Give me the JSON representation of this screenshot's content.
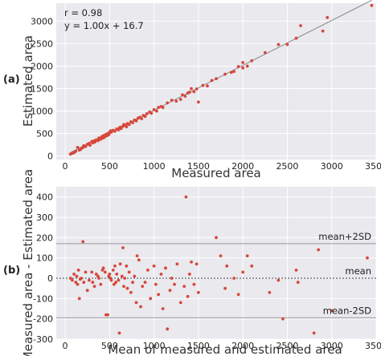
{
  "panels": [
    {
      "label": "(a)",
      "annotation": {
        "r": "r = 0.98",
        "equation": "y = 1.00x + 16.7"
      },
      "xlabel": "Measured area",
      "ylabel": "Estimated area"
    },
    {
      "label": "(b)",
      "xlabel": "Mean of measured and estimated area",
      "ylabel": "Measured area - Estimated area",
      "line_labels": {
        "upper": "mean+2SD",
        "mean": "mean",
        "lower": "mean-2SD"
      }
    }
  ],
  "colors": {
    "points": "#d6473b",
    "plot_background": "#e9e9ee",
    "grid": "#ffffff"
  },
  "chart_data": [
    {
      "type": "scatter",
      "xlim": [
        -100,
        3500
      ],
      "ylim": [
        -80,
        3400
      ],
      "xticks": [
        0,
        500,
        1000,
        1500,
        2000,
        2500,
        3000,
        3500
      ],
      "yticks": [
        0,
        500,
        1000,
        1500,
        2000,
        2500,
        3000
      ],
      "grid": true,
      "regression": {
        "slope": 1.0,
        "intercept": 16.7,
        "r": 0.98
      },
      "points": [
        [
          60,
          40
        ],
        [
          80,
          60
        ],
        [
          95,
          70
        ],
        [
          110,
          90
        ],
        [
          120,
          110
        ],
        [
          140,
          190
        ],
        [
          160,
          130
        ],
        [
          175,
          150
        ],
        [
          185,
          170
        ],
        [
          200,
          190
        ],
        [
          210,
          230
        ],
        [
          230,
          210
        ],
        [
          250,
          260
        ],
        [
          270,
          280
        ],
        [
          280,
          240
        ],
        [
          300,
          320
        ],
        [
          310,
          290
        ],
        [
          320,
          330
        ],
        [
          335,
          310
        ],
        [
          340,
          350
        ],
        [
          360,
          360
        ],
        [
          370,
          340
        ],
        [
          380,
          400
        ],
        [
          390,
          380
        ],
        [
          400,
          370
        ],
        [
          410,
          420
        ],
        [
          420,
          440
        ],
        [
          430,
          400
        ],
        [
          440,
          460
        ],
        [
          450,
          430
        ],
        [
          460,
          480
        ],
        [
          470,
          450
        ],
        [
          480,
          500
        ],
        [
          490,
          470
        ],
        [
          500,
          520
        ],
        [
          510,
          560
        ],
        [
          520,
          530
        ],
        [
          540,
          570
        ],
        [
          560,
          550
        ],
        [
          580,
          600
        ],
        [
          600,
          580
        ],
        [
          610,
          620
        ],
        [
          620,
          640
        ],
        [
          630,
          610
        ],
        [
          650,
          660
        ],
        [
          660,
          700
        ],
        [
          680,
          680
        ],
        [
          690,
          650
        ],
        [
          700,
          720
        ],
        [
          720,
          700
        ],
        [
          740,
          760
        ],
        [
          760,
          740
        ],
        [
          780,
          800
        ],
        [
          800,
          780
        ],
        [
          820,
          840
        ],
        [
          840,
          860
        ],
        [
          860,
          830
        ],
        [
          880,
          900
        ],
        [
          900,
          880
        ],
        [
          920,
          940
        ],
        [
          950,
          980
        ],
        [
          970,
          950
        ],
        [
          1000,
          1030
        ],
        [
          1030,
          1000
        ],
        [
          1050,
          1080
        ],
        [
          1080,
          1100
        ],
        [
          1100,
          1080
        ],
        [
          1150,
          1180
        ],
        [
          1200,
          1240
        ],
        [
          1250,
          1220
        ],
        [
          1300,
          1260
        ],
        [
          1320,
          1360
        ],
        [
          1350,
          1330
        ],
        [
          1380,
          1400
        ],
        [
          1400,
          1420
        ],
        [
          1420,
          1500
        ],
        [
          1450,
          1430
        ],
        [
          1480,
          1490
        ],
        [
          1500,
          1200
        ],
        [
          1550,
          1570
        ],
        [
          1600,
          1560
        ],
        [
          1650,
          1680
        ],
        [
          1700,
          1720
        ],
        [
          1800,
          1820
        ],
        [
          1870,
          1860
        ],
        [
          1900,
          1880
        ],
        [
          1950,
          1990
        ],
        [
          2000,
          1960
        ],
        [
          2000,
          2080
        ],
        [
          2050,
          2000
        ],
        [
          2100,
          2120
        ],
        [
          2250,
          2300
        ],
        [
          2400,
          2480
        ],
        [
          2500,
          2480
        ],
        [
          2600,
          2620
        ],
        [
          2650,
          2900
        ],
        [
          2900,
          2780
        ],
        [
          2950,
          3080
        ],
        [
          3450,
          3350
        ]
      ]
    },
    {
      "type": "scatter",
      "xlim": [
        -100,
        3500
      ],
      "ylim": [
        -300,
        450
      ],
      "xticks": [
        0,
        500,
        1000,
        1500,
        2000,
        2500,
        3000,
        3500
      ],
      "yticks": [
        -300,
        -200,
        -100,
        0,
        100,
        200,
        300,
        400
      ],
      "grid": true,
      "reference_lines": {
        "mean_plus_2sd": 170,
        "mean": 0,
        "mean_minus_2sd": -195
      },
      "points": [
        [
          60,
          0
        ],
        [
          80,
          -10
        ],
        [
          100,
          20
        ],
        [
          120,
          -20
        ],
        [
          130,
          10
        ],
        [
          140,
          -30
        ],
        [
          150,
          40
        ],
        [
          160,
          -100
        ],
        [
          170,
          -5
        ],
        [
          180,
          0
        ],
        [
          200,
          180
        ],
        [
          210,
          -20
        ],
        [
          230,
          30
        ],
        [
          250,
          -60
        ],
        [
          270,
          -10
        ],
        [
          300,
          30
        ],
        [
          310,
          -20
        ],
        [
          330,
          -40
        ],
        [
          350,
          20
        ],
        [
          370,
          10
        ],
        [
          380,
          0
        ],
        [
          400,
          -30
        ],
        [
          420,
          40
        ],
        [
          430,
          50
        ],
        [
          450,
          30
        ],
        [
          460,
          -180
        ],
        [
          480,
          -180
        ],
        [
          490,
          10
        ],
        [
          500,
          20
        ],
        [
          510,
          0
        ],
        [
          520,
          -10
        ],
        [
          540,
          40
        ],
        [
          550,
          -30
        ],
        [
          560,
          60
        ],
        [
          570,
          -20
        ],
        [
          580,
          20
        ],
        [
          600,
          -10
        ],
        [
          610,
          -270
        ],
        [
          620,
          70
        ],
        [
          640,
          10
        ],
        [
          650,
          150
        ],
        [
          660,
          -40
        ],
        [
          670,
          0
        ],
        [
          690,
          60
        ],
        [
          700,
          -50
        ],
        [
          720,
          30
        ],
        [
          740,
          -70
        ],
        [
          760,
          -20
        ],
        [
          780,
          10
        ],
        [
          800,
          -120
        ],
        [
          810,
          110
        ],
        [
          830,
          90
        ],
        [
          850,
          -140
        ],
        [
          870,
          -40
        ],
        [
          900,
          -20
        ],
        [
          930,
          40
        ],
        [
          960,
          -100
        ],
        [
          1000,
          60
        ],
        [
          1020,
          -30
        ],
        [
          1050,
          -80
        ],
        [
          1080,
          20
        ],
        [
          1100,
          -150
        ],
        [
          1130,
          50
        ],
        [
          1150,
          -250
        ],
        [
          1180,
          -60
        ],
        [
          1200,
          0
        ],
        [
          1230,
          -30
        ],
        [
          1260,
          70
        ],
        [
          1300,
          -120
        ],
        [
          1340,
          -40
        ],
        [
          1360,
          400
        ],
        [
          1380,
          -90
        ],
        [
          1400,
          20
        ],
        [
          1420,
          80
        ],
        [
          1450,
          -30
        ],
        [
          1480,
          70
        ],
        [
          1500,
          -70
        ],
        [
          1700,
          200
        ],
        [
          1750,
          110
        ],
        [
          1800,
          -50
        ],
        [
          1820,
          60
        ],
        [
          1900,
          0
        ],
        [
          1950,
          -80
        ],
        [
          2000,
          30
        ],
        [
          2050,
          110
        ],
        [
          2100,
          60
        ],
        [
          2300,
          -70
        ],
        [
          2400,
          -10
        ],
        [
          2450,
          -200
        ],
        [
          2600,
          40
        ],
        [
          2620,
          -20
        ],
        [
          2800,
          -270
        ],
        [
          2850,
          140
        ],
        [
          3000,
          -160
        ],
        [
          3400,
          100
        ]
      ]
    }
  ]
}
